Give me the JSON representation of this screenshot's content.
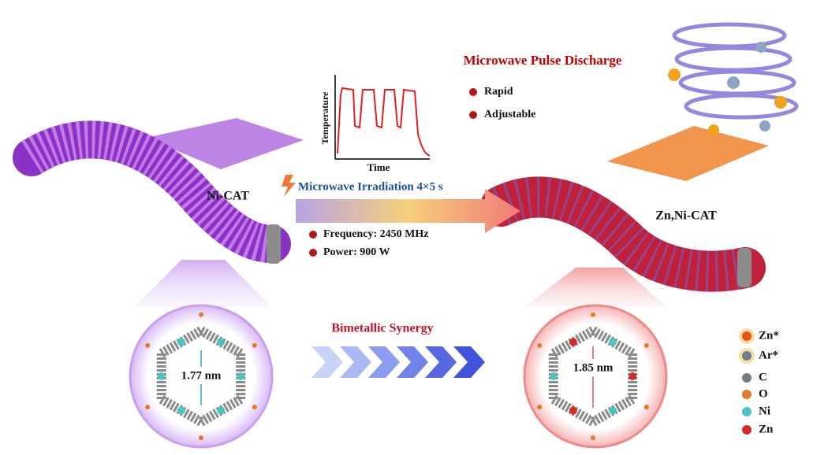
{
  "title": "Microwave Pulse Discharge",
  "features": [
    "Rapid",
    "Adjustable"
  ],
  "inset_plot": {
    "y_label": "Temperature",
    "x_label": "Time"
  },
  "process": {
    "label": "Microwave Irradiation 4×5 s",
    "parameters": [
      "Frequency: 2450 MHz",
      "Power: 900 W"
    ]
  },
  "before": {
    "label": "Ni-CAT",
    "pore_size": "1.77 nm"
  },
  "after": {
    "label": "Zn,Ni-CAT",
    "pore_size": "1.85 nm"
  },
  "synergy": "Bimetallic Synergy",
  "legend": [
    {
      "label": "Zn*",
      "color": "#e8541e"
    },
    {
      "label": "Ar*",
      "color": "#6a7e96"
    },
    {
      "label": "C",
      "color": "#7a7a7a"
    },
    {
      "label": "O",
      "color": "#e07a2a"
    },
    {
      "label": "Ni",
      "color": "#4cc3c0"
    },
    {
      "label": "Zn",
      "color": "#d42a2a"
    }
  ]
}
